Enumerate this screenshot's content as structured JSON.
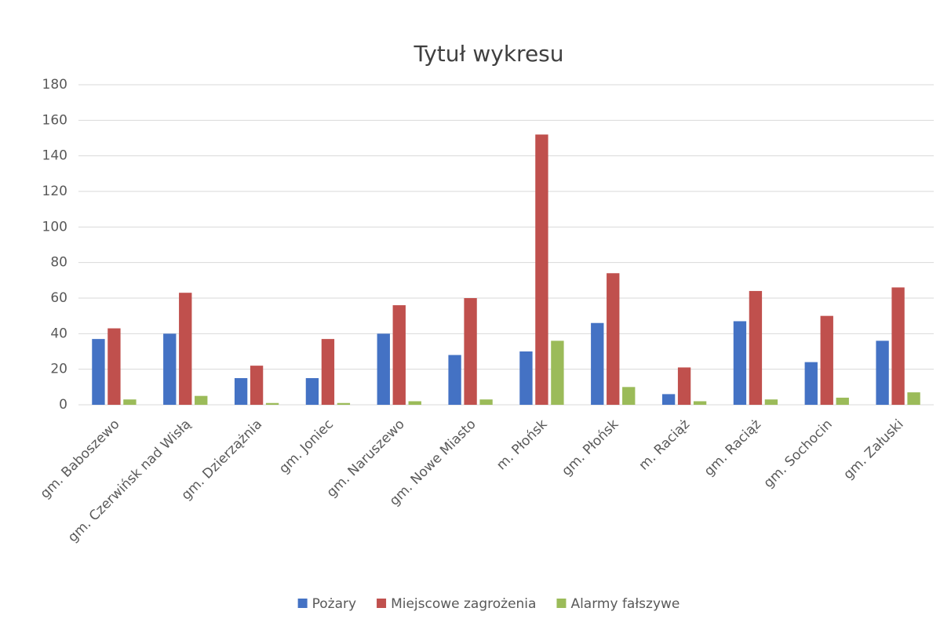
{
  "chart_data": {
    "type": "bar",
    "title": "Tytuł wykresu",
    "categories": [
      "gm. Baboszewo",
      "gm. Czerwińsk nad Wisłą",
      "gm. Dzierzążnia",
      "gm. Joniec",
      "gm. Naruszewo",
      "gm. Nowe Miasto",
      "m. Płońsk",
      "gm. Płońsk",
      "m. Raciąż",
      "gm. Raciąż",
      "gm. Sochocin",
      "gm. Załuski"
    ],
    "series": [
      {
        "name": "Pożary",
        "color": "#4472c4",
        "values": [
          37,
          40,
          15,
          15,
          40,
          28,
          30,
          46,
          6,
          47,
          24,
          36
        ]
      },
      {
        "name": "Miejscowe zagrożenia",
        "color": "#c0504d",
        "values": [
          43,
          63,
          22,
          37,
          56,
          60,
          152,
          74,
          21,
          64,
          50,
          66
        ]
      },
      {
        "name": "Alarmy fałszywe",
        "color": "#9bbb59",
        "values": [
          3,
          5,
          1,
          1,
          2,
          3,
          36,
          10,
          2,
          3,
          4,
          7
        ]
      }
    ],
    "ylim": [
      0,
      180
    ],
    "yticks": [
      0,
      20,
      40,
      60,
      80,
      100,
      120,
      140,
      160,
      180
    ],
    "grid": true,
    "legend": "bottom"
  }
}
